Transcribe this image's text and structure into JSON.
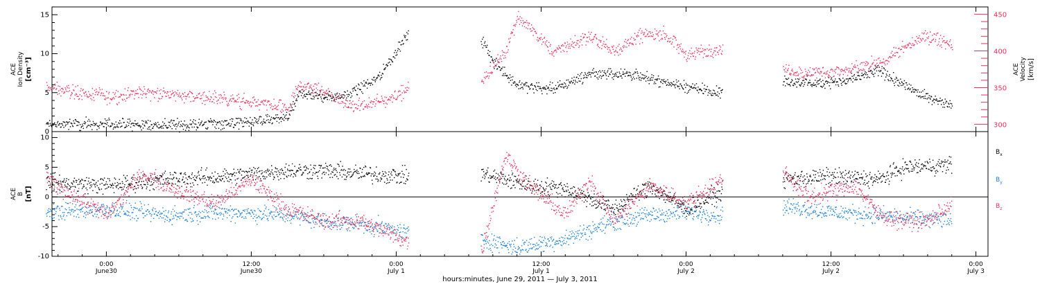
{
  "chart_data": [
    {
      "type": "scatter",
      "panel": "top",
      "ylabel_left": [
        "ACE",
        "Ion Density",
        "[cm⁻³]"
      ],
      "ylabel_right": [
        "ACE",
        "Velocity",
        "[km/s]"
      ],
      "ylim_left": [
        0,
        16
      ],
      "ylim_right": [
        290,
        460
      ],
      "yticks_left": [
        0,
        5,
        10,
        15
      ],
      "yticks_right": [
        300,
        350,
        400,
        450
      ],
      "colors": {
        "density": "#000000",
        "velocity": "#e8305a"
      },
      "segments": [
        {
          "t": [
            -5,
            18
          ],
          "den": [
            [
              -5,
              1.0
            ],
            [
              0,
              1.0
            ],
            [
              3,
              0.9
            ],
            [
              6,
              0.9
            ],
            [
              9,
              1.1
            ],
            [
              12,
              1.3
            ],
            [
              15,
              1.8
            ],
            [
              16,
              5.0
            ],
            [
              18,
              4.5
            ]
          ],
          "vel": [
            [
              -5,
              350
            ],
            [
              0,
              338
            ],
            [
              3,
              345
            ],
            [
              6,
              340
            ],
            [
              9,
              336
            ],
            [
              12,
              330
            ],
            [
              15,
              322
            ],
            [
              16,
              355
            ],
            [
              18,
              345
            ]
          ]
        },
        {
          "t": [
            18,
            25
          ],
          "den": [
            [
              18,
              4.5
            ],
            [
              20,
              4.8
            ],
            [
              22,
              6.5
            ],
            [
              23,
              8.0
            ],
            [
              24,
              10.5
            ],
            [
              25,
              12.5
            ]
          ],
          "vel": [
            [
              18,
              345
            ],
            [
              20,
              325
            ],
            [
              22,
              328
            ],
            [
              24,
              340
            ],
            [
              25,
              350
            ]
          ]
        },
        {
          "t": [
            31,
            51
          ],
          "den": [
            [
              31,
              12.0
            ],
            [
              32,
              9.0
            ],
            [
              34,
              6.0
            ],
            [
              37,
              5.5
            ],
            [
              40,
              7.5
            ],
            [
              43,
              7.5
            ],
            [
              46,
              6.5
            ],
            [
              48,
              5.8
            ],
            [
              51,
              5.0
            ]
          ],
          "vel": [
            [
              31,
              360
            ],
            [
              33,
              400
            ],
            [
              34,
              448
            ],
            [
              36,
              415
            ],
            [
              37,
              400
            ],
            [
              40,
              420
            ],
            [
              42,
              400
            ],
            [
              44,
              420
            ],
            [
              46,
              425
            ],
            [
              48,
              395
            ],
            [
              51,
              405
            ]
          ]
        },
        {
          "t": [
            56,
            70
          ],
          "den": [
            [
              56,
              6.3
            ],
            [
              58,
              6.3
            ],
            [
              61,
              6.5
            ],
            [
              64,
              7.8
            ],
            [
              66,
              6.0
            ],
            [
              68,
              4.5
            ],
            [
              70,
              3.5
            ]
          ],
          "vel": [
            [
              56,
              378
            ],
            [
              58,
              370
            ],
            [
              61,
              372
            ],
            [
              64,
              385
            ],
            [
              66,
              405
            ],
            [
              68,
              420
            ],
            [
              70,
              410
            ]
          ]
        }
      ]
    },
    {
      "type": "scatter",
      "panel": "bottom",
      "ylabel": [
        "ACE",
        "B",
        "[nT]"
      ],
      "ylim": [
        -10,
        11
      ],
      "yticks": [
        -10,
        -5,
        0,
        5,
        10
      ],
      "series": [
        {
          "name": "Bx",
          "color": "#000000",
          "segments": [
            [
              [
                -5,
                2.5
              ],
              [
                0,
                2.0
              ],
              [
                5,
                3.0
              ],
              [
                10,
                3.5
              ],
              [
                15,
                4.5
              ],
              [
                18,
                4.5
              ],
              [
                21,
                4.0
              ],
              [
                25,
                3.5
              ]
            ],
            [
              [
                31,
                4.0
              ],
              [
                35,
                2.0
              ],
              [
                38,
                1.5
              ],
              [
                42,
                -2.0
              ],
              [
                45,
                2.0
              ],
              [
                48,
                -2.0
              ],
              [
                51,
                1.0
              ]
            ],
            [
              [
                56,
                3.0
              ],
              [
                60,
                3.5
              ],
              [
                64,
                3.0
              ],
              [
                66,
                5.0
              ],
              [
                70,
                5.5
              ]
            ]
          ]
        },
        {
          "name": "By",
          "color": "#1a7fd6",
          "segments": [
            [
              [
                -5,
                -2.5
              ],
              [
                0,
                -2.0
              ],
              [
                5,
                -3.0
              ],
              [
                10,
                -2.5
              ],
              [
                15,
                -3.0
              ],
              [
                18,
                -4.0
              ],
              [
                21,
                -4.5
              ],
              [
                25,
                -6.0
              ]
            ],
            [
              [
                31,
                -7.0
              ],
              [
                34,
                -8.5
              ],
              [
                38,
                -7.0
              ],
              [
                42,
                -4.0
              ],
              [
                45,
                -3.0
              ],
              [
                48,
                -2.5
              ],
              [
                51,
                -3.0
              ]
            ],
            [
              [
                56,
                -1.5
              ],
              [
                60,
                -2.5
              ],
              [
                64,
                -3.0
              ],
              [
                66,
                -3.5
              ],
              [
                70,
                -3.8
              ]
            ]
          ]
        },
        {
          "name": "Bz",
          "color": "#e8305a",
          "segments": [
            [
              [
                -5,
                3.0
              ],
              [
                0,
                -3.0
              ],
              [
                3,
                4.0
              ],
              [
                6,
                1.0
              ],
              [
                9,
                -1.0
              ],
              [
                12,
                3.0
              ],
              [
                15,
                -2.0
              ],
              [
                18,
                -4.0
              ],
              [
                21,
                -4.0
              ],
              [
                25,
                -7.5
              ]
            ],
            [
              [
                31,
                -9.5
              ],
              [
                33,
                7.0
              ],
              [
                35,
                2.0
              ],
              [
                38,
                -3.0
              ],
              [
                40,
                3.0
              ],
              [
                42,
                -4.0
              ],
              [
                45,
                2.0
              ],
              [
                48,
                -1.0
              ],
              [
                51,
                3.0
              ]
            ],
            [
              [
                56,
                4.5
              ],
              [
                58,
                0.0
              ],
              [
                62,
                2.0
              ],
              [
                64,
                -3.0
              ],
              [
                66,
                -4.0
              ],
              [
                68,
                -4.0
              ],
              [
                70,
                -1.0
              ]
            ]
          ]
        }
      ]
    }
  ],
  "legend_labels": {
    "bx": {
      "base": "B",
      "sub": "x"
    },
    "by": {
      "base": "B",
      "sub": "y"
    },
    "bz": {
      "base": "B",
      "sub": "z"
    }
  },
  "time_axis": {
    "tick_hours": [
      0,
      12,
      24,
      36,
      48,
      60,
      72
    ],
    "tick_time_labels": [
      "0:00",
      "12:00",
      "0:00",
      "12:00",
      "0:00",
      "12:00",
      "0:00"
    ],
    "tick_date_labels": [
      "June30",
      "June30",
      "July 1",
      "July 1",
      "July 2",
      "July 2",
      "July 3"
    ],
    "xlim_hours": [
      -4.5,
      73
    ],
    "xlabel": "hours:minutes, June 29, 2011 — July  3, 2011"
  }
}
